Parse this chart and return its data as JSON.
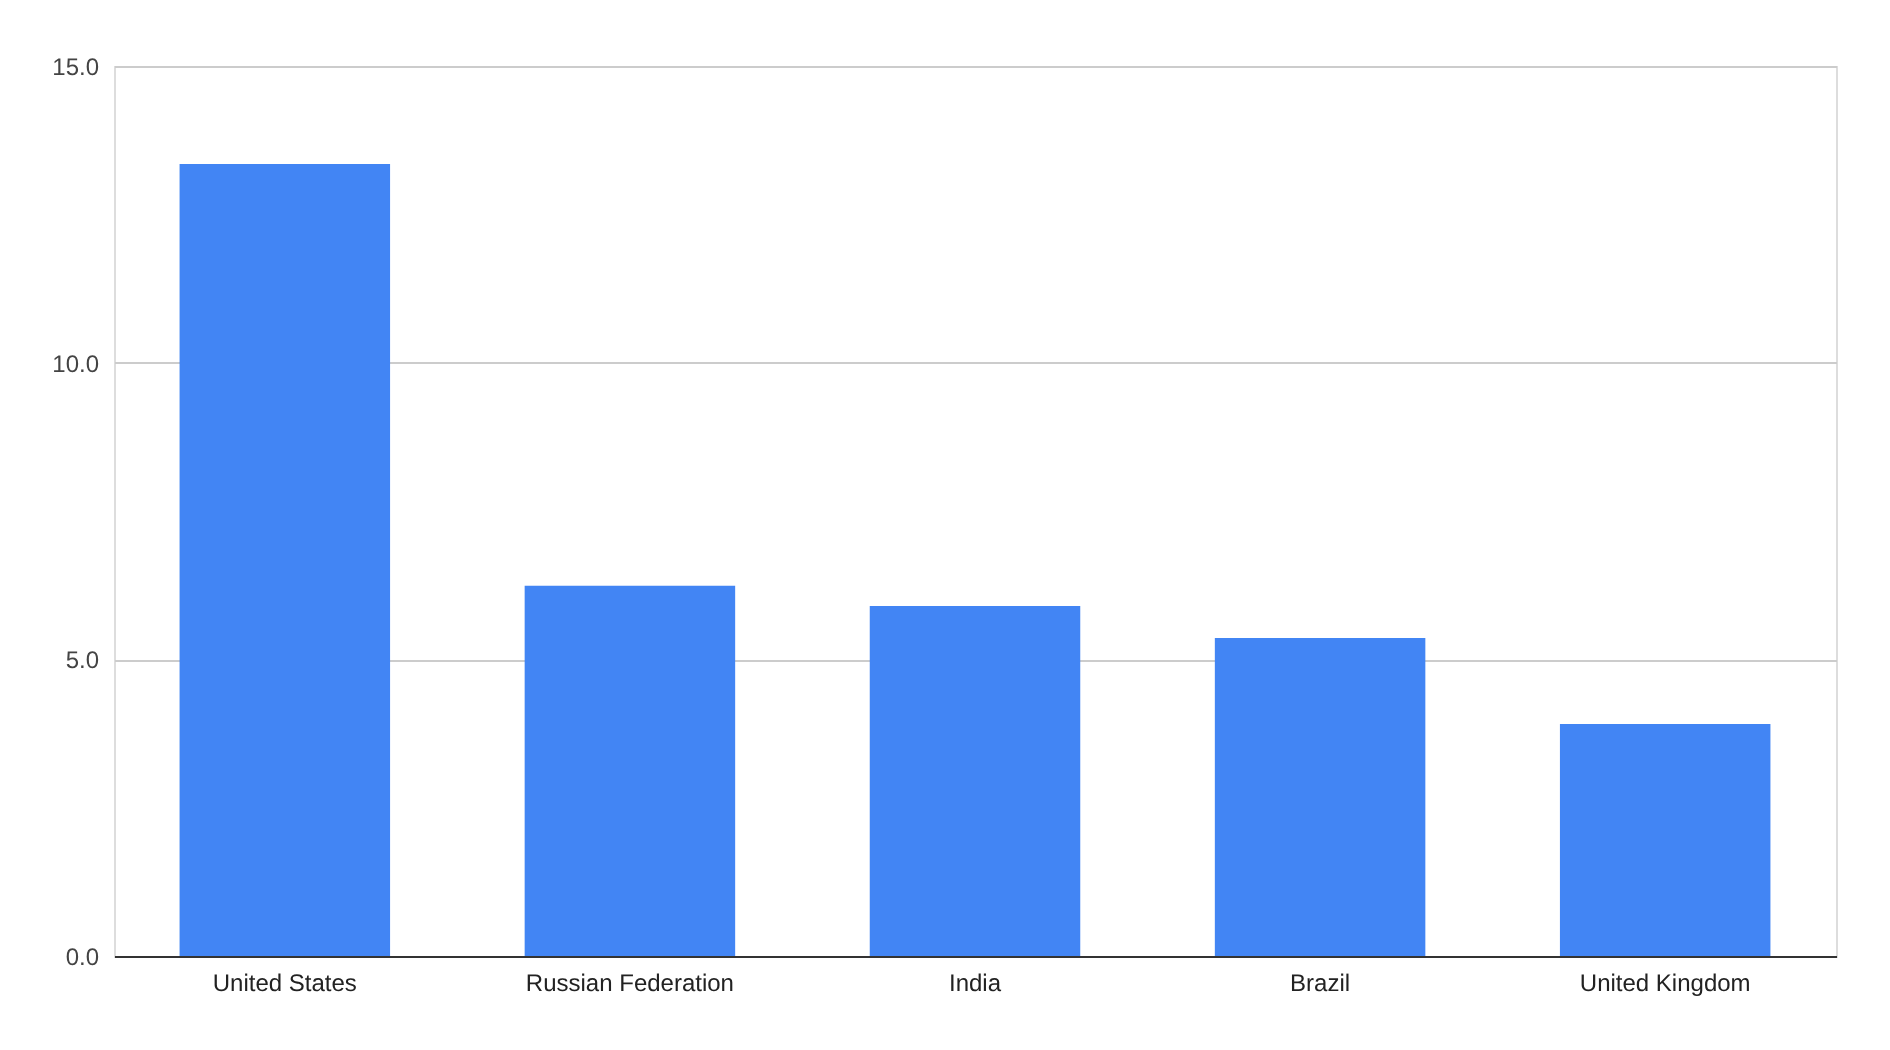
{
  "chart_data": {
    "type": "bar",
    "categories": [
      "United States",
      "Russian Federation",
      "India",
      "Brazil",
      "United Kingdom"
    ],
    "values": [
      13.35,
      6.24,
      5.9,
      5.36,
      3.91
    ],
    "color": "#4285f4",
    "ylim": [
      0,
      15
    ],
    "yticks": [
      {
        "value": 0,
        "label": "0.0"
      },
      {
        "value": 5,
        "label": "5.0"
      },
      {
        "value": 10,
        "label": "10.0"
      },
      {
        "value": 15,
        "label": "15.0"
      }
    ],
    "grid": "y"
  }
}
